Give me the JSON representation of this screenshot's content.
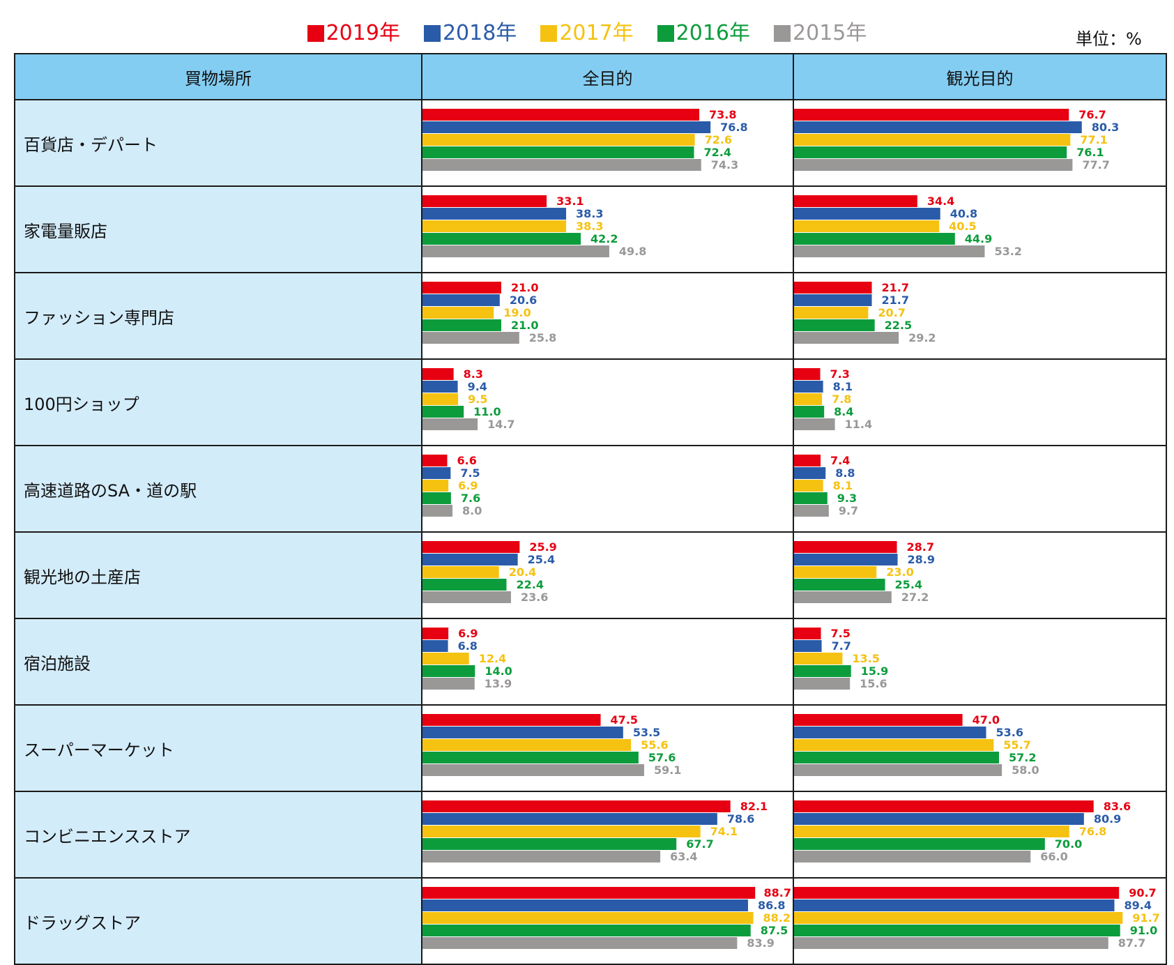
{
  "legend": [
    {
      "label": "2019年",
      "color": "#e60012"
    },
    {
      "label": "2018年",
      "color": "#2a5ba8"
    },
    {
      "label": "2017年",
      "color": "#f5c211"
    },
    {
      "label": "2016年",
      "color": "#0d9c3c"
    },
    {
      "label": "2015年",
      "color": "#9a9797"
    }
  ],
  "unit_label": "単位：%",
  "headers": {
    "place": "買物場所",
    "all": "全目的",
    "tourism": "観光目的"
  },
  "chart_data": {
    "type": "bar",
    "orientation": "horizontal",
    "series_names": [
      "2019年",
      "2018年",
      "2017年",
      "2016年",
      "2015年"
    ],
    "series_colors": [
      "#e60012",
      "#2a5ba8",
      "#f5c211",
      "#0d9c3c",
      "#9a9797"
    ],
    "xlim": [
      0,
      100
    ],
    "grid": false,
    "legend_position": "top",
    "panels": [
      "全目的",
      "観光目的"
    ],
    "rows": [
      {
        "place": "百貨店・デパート",
        "all": [
          73.8,
          76.8,
          72.6,
          72.4,
          74.3
        ],
        "tourism": [
          76.7,
          80.3,
          77.1,
          76.1,
          77.7
        ]
      },
      {
        "place": "家電量販店",
        "all": [
          33.1,
          38.3,
          38.3,
          42.2,
          49.8
        ],
        "tourism": [
          34.4,
          40.8,
          40.5,
          44.9,
          53.2
        ]
      },
      {
        "place": "ファッション専門店",
        "all": [
          21.0,
          20.6,
          19.0,
          21.0,
          25.8
        ],
        "tourism": [
          21.7,
          21.7,
          20.7,
          22.5,
          29.2
        ]
      },
      {
        "place": "100円ショップ",
        "all": [
          8.3,
          9.4,
          9.5,
          11.0,
          14.7
        ],
        "tourism": [
          7.3,
          8.1,
          7.8,
          8.4,
          11.4
        ]
      },
      {
        "place": "高速道路のSA・道の駅",
        "all": [
          6.6,
          7.5,
          6.9,
          7.6,
          8.0
        ],
        "tourism": [
          7.4,
          8.8,
          8.1,
          9.3,
          9.7
        ]
      },
      {
        "place": "観光地の土産店",
        "all": [
          25.9,
          25.4,
          20.4,
          22.4,
          23.6
        ],
        "tourism": [
          28.7,
          28.9,
          23.0,
          25.4,
          27.2
        ]
      },
      {
        "place": "宿泊施設",
        "all": [
          6.9,
          6.8,
          12.4,
          14.0,
          13.9
        ],
        "tourism": [
          7.5,
          7.7,
          13.5,
          15.9,
          15.6
        ]
      },
      {
        "place": "スーパーマーケット",
        "all": [
          47.5,
          53.5,
          55.6,
          57.6,
          59.1
        ],
        "tourism": [
          47.0,
          53.6,
          55.7,
          57.2,
          58.0
        ]
      },
      {
        "place": "コンビニエンスストア",
        "all": [
          82.1,
          78.6,
          74.1,
          67.7,
          63.4
        ],
        "tourism": [
          83.6,
          80.9,
          76.8,
          70.0,
          66.0
        ]
      },
      {
        "place": "ドラッグストア",
        "all": [
          88.7,
          86.8,
          88.2,
          87.5,
          83.9
        ],
        "tourism": [
          90.7,
          89.4,
          91.7,
          91.0,
          87.7
        ]
      }
    ]
  }
}
